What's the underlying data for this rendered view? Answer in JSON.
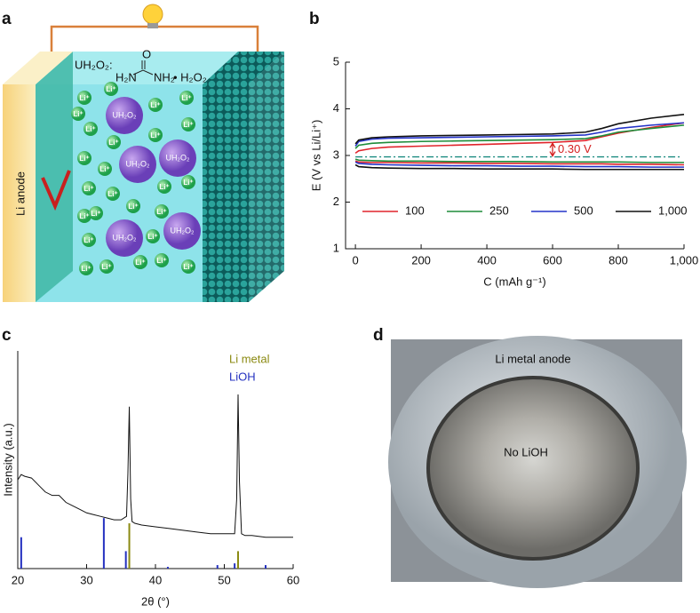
{
  "panels": {
    "a": "a",
    "b": "b",
    "c": "c",
    "d": "d"
  },
  "diagram": {
    "anode": "Li anode",
    "formula_label": "UH₂O₂:",
    "formula_o": "O",
    "formula_h2n": "H₂N",
    "formula_nh2": "NH₂",
    "formula_h2o2": "• H₂O₂",
    "molecule": "UH₂O₂",
    "li_ion": "Li⁺"
  },
  "chart_data": [
    {
      "type": "line",
      "y_label": "E (V vs Li/Li⁺)",
      "x_label": "C (mAh g⁻¹)",
      "x": [
        0,
        10,
        50,
        100,
        200,
        300,
        400,
        500,
        600,
        700,
        750,
        800,
        900,
        1000
      ],
      "xlim": [
        -30,
        1000
      ],
      "xticks": [
        0,
        200,
        400,
        600,
        800,
        {
          "value": 1000,
          "label": "1,000"
        }
      ],
      "ylim": [
        1,
        5
      ],
      "yticks": [
        1,
        2,
        3,
        4,
        5
      ],
      "series": [
        {
          "name": "100",
          "color": "#e0242b",
          "values": [
            3.05,
            3.1,
            3.15,
            3.18,
            3.2,
            3.22,
            3.24,
            3.26,
            3.28,
            3.32,
            3.4,
            3.48,
            3.6,
            3.7
          ],
          "discharge": [
            2.88,
            2.86,
            2.85,
            2.85,
            2.84,
            2.84,
            2.83,
            2.83,
            2.82,
            2.82,
            2.82,
            2.81,
            2.81,
            2.8
          ]
        },
        {
          "name": "250",
          "color": "#1e8c3a",
          "values": [
            3.15,
            3.22,
            3.26,
            3.28,
            3.3,
            3.31,
            3.32,
            3.33,
            3.34,
            3.36,
            3.42,
            3.5,
            3.58,
            3.65
          ],
          "discharge": [
            2.92,
            2.9,
            2.89,
            2.88,
            2.88,
            2.87,
            2.87,
            2.87,
            2.86,
            2.86,
            2.86,
            2.86,
            2.85,
            2.85
          ]
        },
        {
          "name": "500",
          "color": "#2433c8",
          "values": [
            3.2,
            3.3,
            3.35,
            3.37,
            3.38,
            3.39,
            3.4,
            3.41,
            3.42,
            3.44,
            3.5,
            3.58,
            3.65,
            3.7
          ],
          "discharge": [
            2.86,
            2.83,
            2.81,
            2.8,
            2.79,
            2.78,
            2.78,
            2.77,
            2.77,
            2.76,
            2.76,
            2.76,
            2.75,
            2.75
          ]
        },
        {
          "name": "1,000",
          "color": "#111111",
          "values": [
            3.25,
            3.33,
            3.38,
            3.4,
            3.42,
            3.43,
            3.44,
            3.45,
            3.46,
            3.5,
            3.58,
            3.68,
            3.8,
            3.88
          ],
          "discharge": [
            2.8,
            2.76,
            2.74,
            2.73,
            2.72,
            2.72,
            2.71,
            2.71,
            2.71,
            2.7,
            2.7,
            2.7,
            2.7,
            2.7
          ]
        }
      ],
      "reference_line": 2.97,
      "annotation": "0.30 V",
      "legend": "lower center"
    },
    {
      "type": "xrd",
      "y_label": "Intensity (a.u.)",
      "x_label": "2θ (°)",
      "x": [
        20,
        20.5,
        21,
        22,
        23,
        24,
        25,
        26,
        27,
        28,
        29,
        30,
        31,
        32,
        33,
        34,
        35,
        35.8,
        36.0,
        36.2,
        36.4,
        36.6,
        37,
        38,
        40,
        42,
        44,
        46,
        48,
        50,
        51.5,
        51.8,
        52.0,
        52.2,
        52.5,
        53,
        54,
        56,
        58,
        60
      ],
      "values": [
        0.51,
        0.54,
        0.53,
        0.52,
        0.48,
        0.44,
        0.42,
        0.42,
        0.38,
        0.36,
        0.34,
        0.32,
        0.31,
        0.3,
        0.29,
        0.28,
        0.28,
        0.3,
        0.55,
        0.93,
        0.4,
        0.27,
        0.26,
        0.25,
        0.24,
        0.23,
        0.22,
        0.21,
        0.2,
        0.2,
        0.2,
        0.4,
        1.0,
        0.5,
        0.2,
        0.19,
        0.19,
        0.18,
        0.18,
        0.18
      ],
      "color": "#111111",
      "xlim": [
        20,
        60
      ],
      "xticks": [
        20,
        30,
        40,
        50,
        60
      ],
      "ylim": [
        0,
        1.25
      ],
      "references": [
        {
          "name": "Li metal",
          "color": "#8b8a12",
          "x": [
            36.2,
            52.0
          ],
          "values": [
            0.26,
            0.1
          ]
        },
        {
          "name": "LiOH",
          "color": "#2431c0",
          "x": [
            20.5,
            32.5,
            35.7,
            41.8,
            49.0,
            51.5,
            56.0
          ],
          "values": [
            0.18,
            0.29,
            0.1,
            0.01,
            0.02,
            0.03,
            0.02
          ]
        }
      ],
      "legend": "upper right"
    }
  ],
  "photo": {
    "outer": "Li metal anode",
    "inner": "No LiOH"
  }
}
